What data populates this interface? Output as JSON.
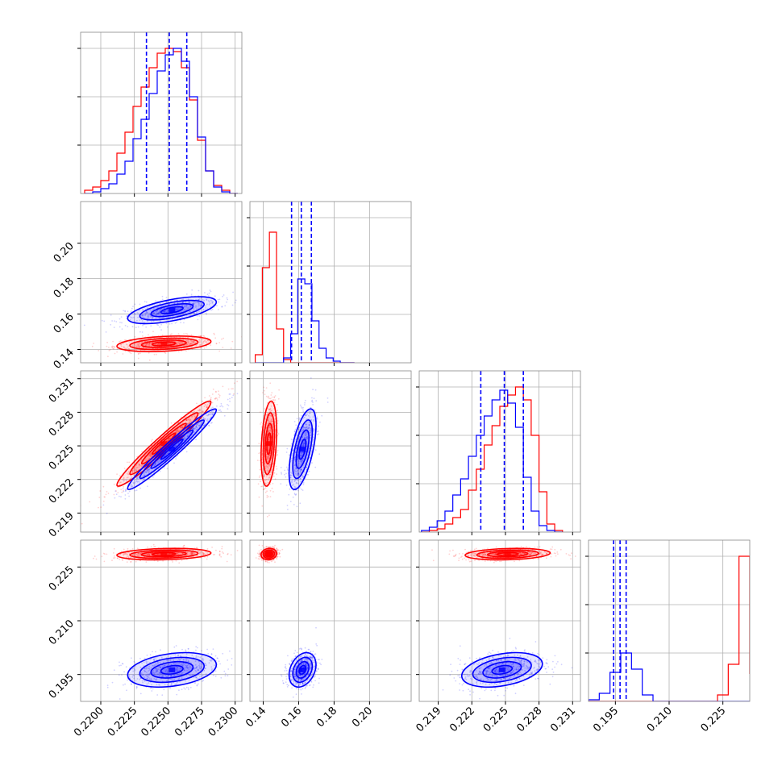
{
  "chart_data": {
    "type": "corner",
    "title": "",
    "series": [
      {
        "name": "",
        "color": "#ff0000"
      },
      {
        "name": "",
        "color": "#0000ff"
      }
    ],
    "quantile_color": "#0000ff",
    "grid": true,
    "params": [
      {
        "ticks": [
          0.22,
          0.2225,
          0.225,
          0.2275,
          0.23
        ],
        "tick_labels": [
          "0.2200",
          "0.2225",
          "0.2250",
          "0.2275",
          "0.2300"
        ],
        "range": [
          0.2185,
          0.2305
        ]
      },
      {
        "ticks": [
          0.14,
          0.16,
          0.18,
          0.2
        ],
        "tick_labels": [
          "0.14",
          "0.16",
          "0.18",
          "0.20"
        ],
        "range": [
          0.1325,
          0.2235
        ]
      },
      {
        "ticks": [
          0.219,
          0.222,
          0.225,
          0.228,
          0.231
        ],
        "tick_labels": [
          "0.219",
          "0.222",
          "0.225",
          "0.228",
          "0.231"
        ],
        "range": [
          0.2173,
          0.2317
        ]
      },
      {
        "ticks": [
          0.195,
          0.21,
          0.225
        ],
        "tick_labels": [
          "0.195",
          "0.210",
          "0.225"
        ],
        "range": [
          0.1875,
          0.2325
        ]
      }
    ],
    "histograms": [
      {
        "quantiles": [
          0.2234,
          0.2251,
          0.2264
        ],
        "ylim": [
          0,
          1
        ],
        "red": {
          "edges": [
            0.2188,
            0.2194,
            0.22,
            0.2206,
            0.2212,
            0.2218,
            0.2224,
            0.223,
            0.2236,
            0.2242,
            0.2248,
            0.2254,
            0.226,
            0.2266,
            0.2272,
            0.2278,
            0.2284,
            0.229,
            0.2296,
            0.2302
          ],
          "counts": [
            0.02,
            0.04,
            0.08,
            0.14,
            0.25,
            0.38,
            0.54,
            0.66,
            0.78,
            0.87,
            0.9,
            0.88,
            0.78,
            0.58,
            0.33,
            0.14,
            0.05,
            0.02,
            0.0
          ]
        },
        "blue": {
          "edges": [
            0.2188,
            0.2194,
            0.22,
            0.2206,
            0.2212,
            0.2218,
            0.2224,
            0.223,
            0.2236,
            0.2242,
            0.2248,
            0.2254,
            0.226,
            0.2266,
            0.2272,
            0.2278,
            0.2284,
            0.229,
            0.2296,
            0.2302
          ],
          "counts": [
            0.0,
            0.01,
            0.03,
            0.06,
            0.12,
            0.2,
            0.34,
            0.46,
            0.62,
            0.76,
            0.86,
            0.9,
            0.82,
            0.6,
            0.35,
            0.14,
            0.04,
            0.01,
            0.0
          ]
        }
      },
      {
        "quantiles": [
          0.156,
          0.1615,
          0.1672
        ],
        "ylim": [
          0,
          1
        ],
        "red": {
          "edges": [
            0.1355,
            0.1395,
            0.1435,
            0.1475,
            0.1515,
            0.1555,
            0.1595,
            0.1635,
            0.1675,
            0.1715,
            0.1755,
            0.1795,
            0.1835,
            0.1875,
            0.1915
          ],
          "counts": [
            0.05,
            0.59,
            0.81,
            0.21,
            0.02,
            0.0,
            0,
            0,
            0,
            0,
            0,
            0,
            0,
            0
          ]
        },
        "blue": {
          "edges": [
            0.1355,
            0.1395,
            0.1435,
            0.1475,
            0.1515,
            0.1555,
            0.1595,
            0.1635,
            0.1675,
            0.1715,
            0.1755,
            0.1795,
            0.1835,
            0.1875,
            0.1915
          ],
          "counts": [
            0,
            0,
            0,
            0,
            0.03,
            0.18,
            0.52,
            0.49,
            0.26,
            0.09,
            0.03,
            0.01,
            0.0,
            0.0
          ]
        }
      },
      {
        "quantiles": [
          0.2228,
          0.2249,
          0.2266
        ],
        "ylim": [
          0,
          1
        ],
        "red": {
          "edges": [
            0.2175,
            0.2182,
            0.2189,
            0.2196,
            0.2203,
            0.221,
            0.2217,
            0.2224,
            0.2231,
            0.2238,
            0.2245,
            0.2252,
            0.2259,
            0.2266,
            0.2273,
            0.228,
            0.2287,
            0.2294,
            0.2301
          ],
          "counts": [
            0.0,
            0.01,
            0.02,
            0.05,
            0.09,
            0.14,
            0.26,
            0.39,
            0.54,
            0.66,
            0.78,
            0.85,
            0.9,
            0.82,
            0.6,
            0.25,
            0.05,
            0.01
          ]
        },
        "blue": {
          "edges": [
            0.2175,
            0.2182,
            0.2189,
            0.2196,
            0.2203,
            0.221,
            0.2217,
            0.2224,
            0.2231,
            0.2238,
            0.2245,
            0.2252,
            0.2259,
            0.2266,
            0.2273,
            0.228,
            0.2287,
            0.2294,
            0.2301
          ],
          "counts": [
            0.01,
            0.03,
            0.07,
            0.13,
            0.23,
            0.33,
            0.47,
            0.6,
            0.72,
            0.82,
            0.88,
            0.8,
            0.65,
            0.34,
            0.13,
            0.04,
            0.01,
            0.0
          ]
        }
      },
      {
        "quantiles": [
          0.1945,
          0.1963,
          0.198
        ],
        "ylim": [
          0,
          1
        ],
        "red": {
          "edges": [
            0.1875,
            0.1905,
            0.1935,
            0.1965,
            0.1995,
            0.2025,
            0.2055,
            0.2085,
            0.2115,
            0.2145,
            0.2175,
            0.2205,
            0.2235,
            0.2265,
            0.2295,
            0.2325
          ],
          "counts": [
            0,
            0,
            0,
            0,
            0,
            0,
            0,
            0,
            0,
            0,
            0,
            0,
            0.04,
            0.23,
            0.9,
            0.17
          ]
        },
        "blue": {
          "edges": [
            0.1875,
            0.1905,
            0.1935,
            0.1965,
            0.1995,
            0.2025,
            0.2055,
            0.2085,
            0.2115,
            0.2145,
            0.2175,
            0.2205,
            0.2235,
            0.2265,
            0.2295,
            0.2325
          ],
          "counts": [
            0.01,
            0.05,
            0.18,
            0.3,
            0.2,
            0.04,
            0.0,
            0,
            0,
            0,
            0,
            0,
            0,
            0,
            0,
            0
          ]
        }
      }
    ],
    "pairs": [
      {
        "x": 0,
        "y": 1,
        "red": {
          "cx": 0.2247,
          "cy": 0.1432,
          "sx": 0.00175,
          "sy": 0.0022,
          "rho": 0.3
        },
        "blue": {
          "cx": 0.2253,
          "cy": 0.1622,
          "sx": 0.00165,
          "sy": 0.0038,
          "rho": 0.6
        }
      },
      {
        "x": 0,
        "y": 2,
        "red": {
          "cx": 0.2247,
          "cy": 0.2252,
          "sx": 0.00175,
          "sy": 0.0019,
          "rho": 0.97
        },
        "blue": {
          "cx": 0.2253,
          "cy": 0.2247,
          "sx": 0.00165,
          "sy": 0.0018,
          "rho": 0.97
        }
      },
      {
        "x": 0,
        "y": 3,
        "red": {
          "cx": 0.2247,
          "cy": 0.2286,
          "sx": 0.00175,
          "sy": 0.0008,
          "rho": 0.2
        },
        "blue": {
          "cx": 0.2253,
          "cy": 0.1963,
          "sx": 0.00165,
          "sy": 0.0024,
          "rho": 0.3
        }
      },
      {
        "x": 1,
        "y": 2,
        "red": {
          "cx": 0.1432,
          "cy": 0.2252,
          "sx": 0.0022,
          "sy": 0.0019,
          "rho": 0.3
        },
        "blue": {
          "cx": 0.1622,
          "cy": 0.2247,
          "sx": 0.0038,
          "sy": 0.0018,
          "rho": 0.6
        }
      },
      {
        "x": 1,
        "y": 3,
        "red": {
          "cx": 0.1432,
          "cy": 0.2286,
          "sx": 0.0022,
          "sy": 0.0008,
          "rho": 0.1
        },
        "blue": {
          "cx": 0.1622,
          "cy": 0.1963,
          "sx": 0.0038,
          "sy": 0.0024,
          "rho": 0.3
        }
      },
      {
        "x": 2,
        "y": 3,
        "red": {
          "cx": 0.2252,
          "cy": 0.2286,
          "sx": 0.0019,
          "sy": 0.0008,
          "rho": 0.2
        },
        "blue": {
          "cx": 0.2247,
          "cy": 0.1963,
          "sx": 0.0018,
          "sy": 0.0024,
          "rho": 0.35
        }
      }
    ]
  }
}
